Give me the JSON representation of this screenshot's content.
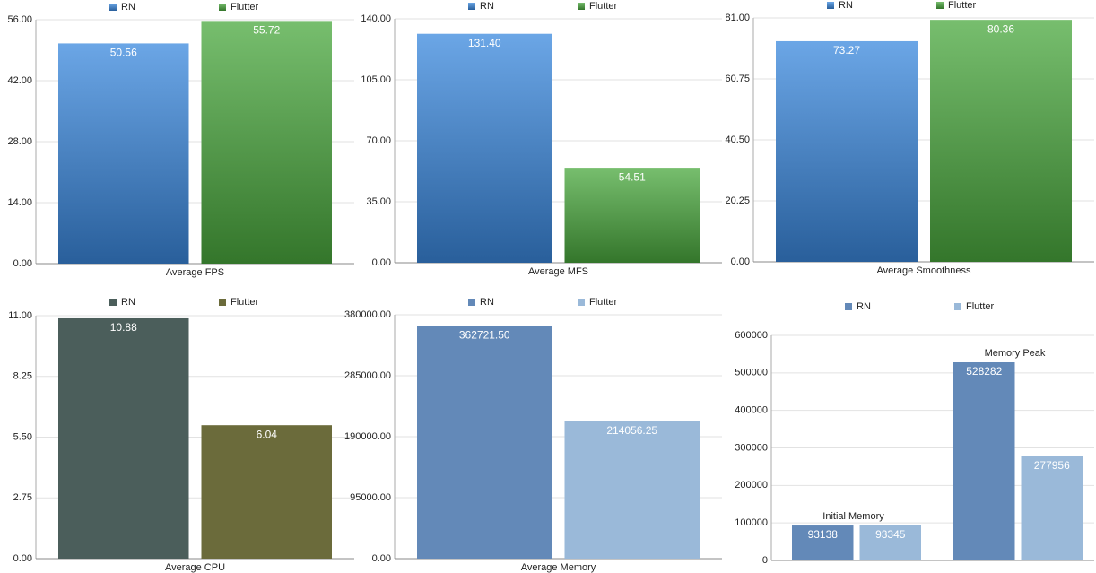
{
  "chart_data": [
    {
      "type": "bar",
      "categories": [
        "Average FPS"
      ],
      "gradient": true,
      "grid": true,
      "series": [
        {
          "name": "RN",
          "color": "#3a88dd",
          "values": [
            50.56
          ]
        },
        {
          "name": "Flutter",
          "color": "#4aa83e",
          "values": [
            55.72
          ]
        }
      ],
      "ylim": [
        0,
        56
      ],
      "yticks": [
        {
          "value": 0,
          "label": "0.00"
        },
        {
          "value": 14,
          "label": "14.00"
        },
        {
          "value": 28,
          "label": "28.00"
        },
        {
          "value": 42,
          "label": "42.00"
        },
        {
          "value": 56,
          "label": "56.00"
        }
      ]
    },
    {
      "type": "bar",
      "categories": [
        "Average MFS"
      ],
      "gradient": true,
      "grid": true,
      "series": [
        {
          "name": "RN",
          "color": "#3a88dd",
          "values": [
            131.4
          ],
          "value_labels": [
            "131.40"
          ]
        },
        {
          "name": "Flutter",
          "color": "#4aa83e",
          "values": [
            54.51
          ]
        }
      ],
      "ylim": [
        0,
        140
      ],
      "yticks": [
        {
          "value": 0,
          "label": "0.00"
        },
        {
          "value": 35,
          "label": "35.00"
        },
        {
          "value": 70,
          "label": "70.00"
        },
        {
          "value": 105,
          "label": "105.00"
        },
        {
          "value": 140,
          "label": "140.00"
        }
      ]
    },
    {
      "type": "bar",
      "categories": [
        "Average Smoothness"
      ],
      "gradient": true,
      "grid": true,
      "series": [
        {
          "name": "RN",
          "color": "#3a88dd",
          "values": [
            73.27
          ]
        },
        {
          "name": "Flutter",
          "color": "#4aa83e",
          "values": [
            80.36
          ]
        }
      ],
      "ylim": [
        0,
        81
      ],
      "yticks": [
        {
          "value": 0,
          "label": "0.00"
        },
        {
          "value": 20.25,
          "label": "20.25"
        },
        {
          "value": 40.5,
          "label": "40.50"
        },
        {
          "value": 60.75,
          "label": "60.75"
        },
        {
          "value": 81,
          "label": "81.00"
        }
      ]
    },
    {
      "type": "bar",
      "categories": [
        "Average CPU"
      ],
      "gradient": false,
      "grid": true,
      "series": [
        {
          "name": "RN",
          "color": "#4b5e5b",
          "values": [
            10.88
          ]
        },
        {
          "name": "Flutter",
          "color": "#6b6b3b",
          "values": [
            6.04
          ]
        }
      ],
      "ylim": [
        0,
        11
      ],
      "yticks": [
        {
          "value": 0,
          "label": "0.00"
        },
        {
          "value": 2.75,
          "label": "2.75"
        },
        {
          "value": 5.5,
          "label": "5.50"
        },
        {
          "value": 8.25,
          "label": "8.25"
        },
        {
          "value": 11,
          "label": "11.00"
        }
      ]
    },
    {
      "type": "bar",
      "categories": [
        "Average Memory"
      ],
      "gradient": false,
      "grid": true,
      "series": [
        {
          "name": "RN",
          "color": "#6389b8",
          "values": [
            362721.5
          ],
          "value_labels": [
            "362721.50"
          ]
        },
        {
          "name": "Flutter",
          "color": "#9ab9d9",
          "values": [
            214056.25
          ]
        }
      ],
      "ylim": [
        0,
        380000
      ],
      "yticks": [
        {
          "value": 0,
          "label": "0.00"
        },
        {
          "value": 95000,
          "label": "95000.00"
        },
        {
          "value": 190000,
          "label": "190000.00"
        },
        {
          "value": 285000,
          "label": "285000.00"
        },
        {
          "value": 380000,
          "label": "380000.00"
        }
      ]
    },
    {
      "type": "bar",
      "categories": [
        "Initial Memory",
        "Memory Peak"
      ],
      "gradient": false,
      "grid": true,
      "series": [
        {
          "name": "RN",
          "color": "#6389b8",
          "values": [
            93138,
            528282
          ]
        },
        {
          "name": "Flutter",
          "color": "#9ab9d9",
          "values": [
            93345,
            277956
          ]
        }
      ],
      "ylim": [
        0,
        600000
      ],
      "yticks": [
        0,
        100000,
        200000,
        300000,
        400000,
        500000,
        600000
      ]
    }
  ]
}
